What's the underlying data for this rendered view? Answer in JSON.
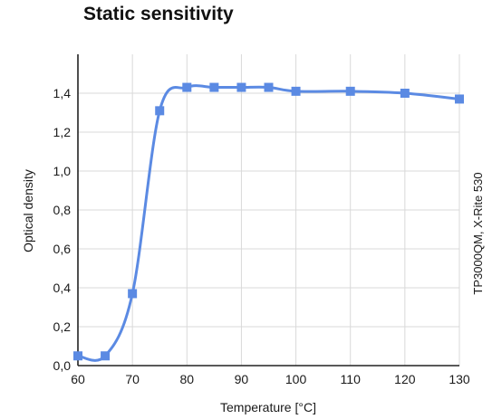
{
  "chart_data": {
    "type": "line",
    "title": "Static sensitivity",
    "xlabel": "Temperature [°C]",
    "ylabel": "Optical density",
    "side_label": "TP3000QM, X-Rite 530",
    "xlim": [
      60,
      130
    ],
    "ylim": [
      0,
      1.6
    ],
    "x_ticks": [
      60,
      70,
      80,
      90,
      100,
      110,
      120,
      130
    ],
    "x_tick_labels": [
      "60",
      "70",
      "80",
      "90",
      "100",
      "110",
      "120",
      "130"
    ],
    "y_ticks": [
      0,
      0.2,
      0.4,
      0.6,
      0.8,
      1.0,
      1.2,
      1.4
    ],
    "y_tick_labels": [
      "0,0",
      "0,2",
      "0,4",
      "0,6",
      "0,8",
      "1,0",
      "1,2",
      "1,4"
    ],
    "grid": true,
    "series": [
      {
        "color": "#5b8ae3",
        "marker": "square",
        "smooth": true,
        "x": [
          60,
          65,
          70,
          75,
          80,
          85,
          90,
          95,
          100,
          110,
          120,
          130
        ],
        "y": [
          0.05,
          0.05,
          0.37,
          1.31,
          1.43,
          1.43,
          1.43,
          1.43,
          1.41,
          1.41,
          1.4,
          1.37
        ]
      }
    ],
    "colors": {
      "line": "#5b8ae3",
      "grid": "#d9d9d9",
      "axis": "#222222"
    }
  }
}
